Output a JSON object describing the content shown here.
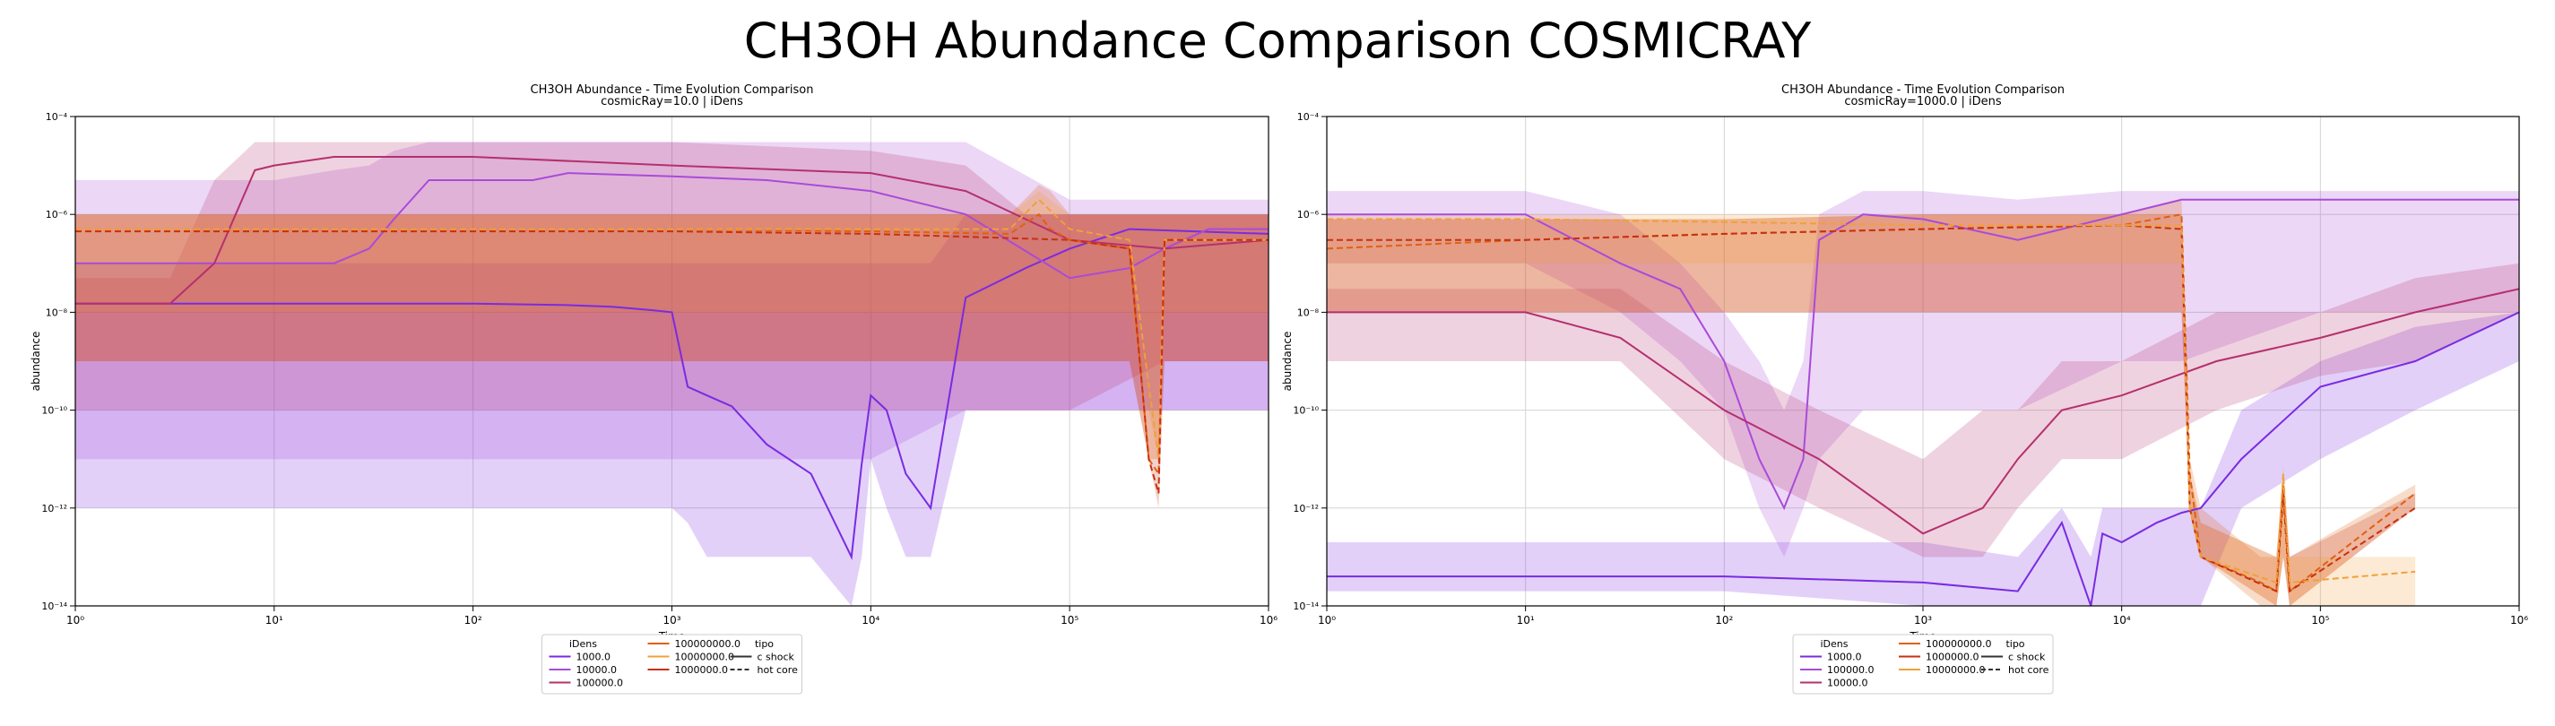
{
  "figure_title": "CH3OH Abundance Comparison COSMICRAY",
  "colors": {
    "violet": "#7A2BE2",
    "purple": "#A94BD8",
    "magenta": "#B5306E",
    "orange": "#E0600F",
    "light_orange": "#F0A03A",
    "red_dashed": "#C83010"
  },
  "chart_data": [
    {
      "type": "line",
      "title": "CH3OH Abundance - Time Evolution Comparison",
      "subtitle": "cosmicRay=10.0 | iDens",
      "xlabel": "Time",
      "ylabel": "abundance",
      "xscale": "log",
      "yscale": "log",
      "xlim": [
        1,
        1000000
      ],
      "ylim": [
        1e-14,
        0.0001
      ],
      "grid": true,
      "x_ticks": [
        "10⁰",
        "10¹",
        "10²",
        "10³",
        "10⁴",
        "10⁵",
        "10⁶"
      ],
      "y_ticks": [
        "10⁻¹⁴",
        "10⁻¹²",
        "10⁻¹⁰",
        "10⁻⁸",
        "10⁻⁶",
        "10⁻⁴"
      ],
      "legend": {
        "placement": "below",
        "iDens_title": "iDens",
        "iDens_entries": [
          "1000.0",
          "10000.0",
          "100000.0",
          "100000000.0",
          "10000000.0",
          "1000000.0"
        ],
        "tipo_title": "tipo",
        "tipo_entries": [
          "c shock",
          "hot core"
        ]
      },
      "series": [
        {
          "name": "1000.0",
          "color": "#7A2BE2",
          "style": "solid",
          "x": [
            1,
            3,
            10,
            30,
            100,
            300,
            500,
            800,
            1000,
            1200,
            1500,
            2000,
            3000,
            5000,
            8000,
            9000,
            10000,
            12000,
            15000,
            20000,
            30000,
            60000,
            100000,
            200000,
            1000000
          ],
          "y": [
            1.5e-08,
            1.5e-08,
            1.5e-08,
            1.5e-08,
            1.5e-08,
            1.4e-08,
            1.3e-08,
            1.1e-08,
            1e-08,
            3e-10,
            2e-10,
            1.2e-10,
            2e-11,
            5e-12,
            1e-13,
            8e-12,
            2e-10,
            1e-10,
            5e-12,
            1e-12,
            2e-08,
            8e-08,
            2e-07,
            5e-07,
            4e-07
          ],
          "band_low": [
            1e-12,
            1e-12,
            1e-12,
            1e-12,
            1e-12,
            1e-12,
            1e-12,
            1e-12,
            1e-12,
            5e-13,
            1e-13,
            1e-13,
            1e-13,
            1e-13,
            1e-14,
            1e-13,
            1e-11,
            1e-12,
            1e-13,
            1e-13,
            1e-10,
            1e-10,
            1e-10,
            1e-10,
            1e-10
          ],
          "band_high": [
            1e-07,
            1e-07,
            1e-07,
            1e-07,
            1e-07,
            1e-07,
            1e-07,
            1e-07,
            1e-07,
            1e-07,
            1e-07,
            1e-07,
            1e-07,
            1e-07,
            1e-07,
            1e-07,
            1e-07,
            1e-07,
            1e-07,
            1e-07,
            1e-06,
            1e-06,
            1e-06,
            1e-06,
            1e-06
          ]
        },
        {
          "name": "10000.0",
          "color": "#A94BD8",
          "style": "solid",
          "x": [
            1,
            10,
            20,
            30,
            40,
            60,
            100,
            200,
            300,
            1000,
            3000,
            10000,
            30000,
            100000,
            200000,
            300000,
            500000,
            1000000
          ],
          "y": [
            1e-07,
            1e-07,
            1e-07,
            2e-07,
            8e-07,
            5e-06,
            5e-06,
            5e-06,
            7e-06,
            6e-06,
            5e-06,
            3e-06,
            1e-06,
            5e-08,
            8e-08,
            2e-07,
            5e-07,
            5e-07
          ],
          "band_low": [
            1e-11,
            1e-11,
            1e-11,
            1e-11,
            1e-11,
            1e-11,
            1e-11,
            1e-11,
            1e-11,
            1e-11,
            1e-11,
            1e-11,
            1e-10,
            1e-10,
            1e-10,
            1e-10,
            1e-10,
            1e-10
          ],
          "band_high": [
            5e-06,
            5e-06,
            8e-06,
            1e-05,
            2e-05,
            3e-05,
            3e-05,
            3e-05,
            3e-05,
            3e-05,
            3e-05,
            3e-05,
            3e-05,
            2e-06,
            2e-06,
            2e-06,
            2e-06,
            2e-06
          ]
        },
        {
          "name": "100000.0",
          "color": "#B5306E",
          "style": "solid",
          "x": [
            1,
            3,
            5,
            8,
            10,
            20,
            100,
            1000,
            10000,
            30000,
            60000,
            100000,
            300000,
            1000000
          ],
          "y": [
            1.5e-08,
            1.5e-08,
            1e-07,
            8e-06,
            1e-05,
            1.5e-05,
            1.5e-05,
            1e-05,
            7e-06,
            3e-06,
            8e-07,
            3e-07,
            2e-07,
            3e-07
          ],
          "band_low": [
            1e-10,
            1e-10,
            1e-10,
            1e-10,
            1e-10,
            1e-10,
            1e-10,
            1e-10,
            1e-10,
            1e-10,
            1e-10,
            1e-10,
            1e-09,
            1e-09
          ],
          "band_high": [
            5e-08,
            5e-08,
            5e-06,
            3e-05,
            3e-05,
            3e-05,
            3e-05,
            3e-05,
            2e-05,
            1e-05,
            1e-06,
            1e-06,
            1e-06,
            1e-06
          ]
        },
        {
          "name": "100000000.0",
          "color": "#E0600F",
          "style": "dashed",
          "x": [
            1,
            10,
            100,
            1000,
            10000,
            50000,
            70000,
            80000,
            100000,
            200000,
            250000,
            280000,
            300000,
            1000000
          ],
          "y": [
            5e-07,
            5e-07,
            5e-07,
            5e-07,
            4.5e-07,
            4e-07,
            1e-06,
            5e-07,
            3e-07,
            2e-07,
            1e-11,
            5e-12,
            3e-07,
            3e-07
          ],
          "band_low": [
            1e-09,
            1e-09,
            1e-09,
            1e-09,
            1e-09,
            1e-09,
            1e-09,
            1e-09,
            1e-09,
            1e-09,
            1e-11,
            1e-11,
            1e-09,
            1e-09
          ],
          "band_high": [
            1e-06,
            1e-06,
            1e-06,
            1e-06,
            1e-06,
            1e-06,
            4e-06,
            3e-06,
            1e-06,
            1e-06,
            1e-06,
            1e-06,
            1e-06,
            1e-06
          ]
        },
        {
          "name": "10000000.0",
          "color": "#F0A03A",
          "style": "dashed",
          "x": [
            1,
            10,
            100,
            1000,
            10000,
            50000,
            70000,
            100000,
            200000,
            280000,
            300000,
            1000000
          ],
          "y": [
            5e-07,
            5e-07,
            5e-07,
            5e-07,
            5e-07,
            5e-07,
            2e-06,
            5e-07,
            3e-07,
            1e-11,
            3e-07,
            3e-07
          ],
          "band_low": [
            1e-08,
            1e-08,
            1e-08,
            1e-08,
            1e-08,
            1e-08,
            1e-08,
            1e-08,
            1e-08,
            1e-11,
            1e-08,
            1e-08
          ],
          "band_high": [
            1e-06,
            1e-06,
            1e-06,
            1e-06,
            1e-06,
            1e-06,
            3e-06,
            1e-06,
            1e-06,
            1e-06,
            1e-06,
            1e-06
          ]
        },
        {
          "name": "1000000.0",
          "color": "#C83010",
          "style": "dashed",
          "x": [
            1,
            10,
            100,
            1000,
            10000,
            100000,
            200000,
            250000,
            280000,
            300000,
            1000000
          ],
          "y": [
            4.5e-07,
            4.5e-07,
            4.5e-07,
            4.5e-07,
            4e-07,
            3e-07,
            2e-07,
            1e-11,
            2e-12,
            3e-07,
            3e-07
          ],
          "band_low": [
            1e-09,
            1e-09,
            1e-09,
            1e-09,
            1e-09,
            1e-09,
            1e-09,
            1e-11,
            1e-12,
            1e-09,
            1e-09
          ],
          "band_high": [
            1e-06,
            1e-06,
            1e-06,
            1e-06,
            1e-06,
            1e-06,
            1e-06,
            1e-06,
            1e-06,
            1e-06,
            1e-06
          ]
        }
      ]
    },
    {
      "type": "line",
      "title": "CH3OH Abundance - Time Evolution Comparison",
      "subtitle": "cosmicRay=1000.0 | iDens",
      "xlabel": "Time",
      "ylabel": "abundance",
      "xscale": "log",
      "yscale": "log",
      "xlim": [
        1,
        1000000
      ],
      "ylim": [
        1e-14,
        0.0001
      ],
      "grid": true,
      "x_ticks": [
        "10⁰",
        "10¹",
        "10²",
        "10³",
        "10⁴",
        "10⁵",
        "10⁶"
      ],
      "y_ticks": [
        "10⁻¹⁴",
        "10⁻¹²",
        "10⁻¹⁰",
        "10⁻⁸",
        "10⁻⁶",
        "10⁻⁴"
      ],
      "legend": {
        "placement": "below",
        "iDens_title": "iDens",
        "iDens_entries": [
          "1000.0",
          "100000.0",
          "10000.0",
          "100000000.0",
          "1000000.0",
          "10000000.0"
        ],
        "tipo_title": "tipo",
        "tipo_entries": [
          "c shock",
          "hot core"
        ]
      },
      "series": [
        {
          "name": "1000.0",
          "color": "#7A2BE2",
          "style": "solid",
          "x": [
            1,
            100,
            1000,
            3000,
            5000,
            7000,
            8000,
            10000,
            15000,
            20000,
            25000,
            40000,
            100000,
            300000,
            1000000
          ],
          "y": [
            4e-14,
            4e-14,
            3e-14,
            2e-14,
            5e-13,
            1e-14,
            3e-13,
            2e-13,
            5e-13,
            8e-13,
            1e-12,
            1e-11,
            3e-10,
            1e-09,
            1e-08
          ],
          "band_low": [
            2e-14,
            2e-14,
            1e-14,
            1e-14,
            1e-14,
            1e-14,
            1e-14,
            1e-14,
            1e-14,
            1e-14,
            1e-14,
            1e-12,
            1e-11,
            1e-10,
            1e-09
          ],
          "band_high": [
            2e-13,
            2e-13,
            2e-13,
            1e-13,
            1e-12,
            1e-13,
            1e-12,
            1e-12,
            1e-12,
            1e-12,
            1e-12,
            1e-10,
            1e-09,
            5e-09,
            1e-08
          ]
        },
        {
          "name": "100000.0",
          "color": "#A94BD8",
          "style": "solid",
          "x": [
            1,
            10,
            30,
            60,
            100,
            150,
            200,
            250,
            300,
            500,
            1000,
            3000,
            10000,
            20000,
            100000,
            1000000
          ],
          "y": [
            1e-06,
            1e-06,
            1e-07,
            3e-08,
            1e-09,
            1e-11,
            1e-12,
            1e-11,
            3e-07,
            1e-06,
            8e-07,
            3e-07,
            1e-06,
            2e-06,
            2e-06,
            2e-06
          ],
          "band_low": [
            1e-07,
            1e-07,
            1e-08,
            1e-09,
            1e-10,
            1e-12,
            1e-13,
            1e-12,
            1e-11,
            1e-10,
            1e-10,
            1e-10,
            1e-09,
            1e-09,
            1e-08,
            1e-08
          ],
          "band_high": [
            3e-06,
            3e-06,
            1e-06,
            1e-07,
            1e-08,
            1e-09,
            1e-10,
            1e-09,
            1e-06,
            3e-06,
            3e-06,
            2e-06,
            3e-06,
            3e-06,
            3e-06,
            3e-06
          ]
        },
        {
          "name": "10000.0",
          "color": "#B5306E",
          "style": "solid",
          "x": [
            1,
            10,
            30,
            100,
            300,
            1000,
            2000,
            3000,
            5000,
            10000,
            30000,
            100000,
            300000,
            1000000
          ],
          "y": [
            1e-08,
            1e-08,
            3e-09,
            1e-10,
            1e-11,
            3e-13,
            1e-12,
            1e-11,
            1e-10,
            2e-10,
            1e-09,
            3e-09,
            1e-08,
            3e-08
          ],
          "band_low": [
            1e-09,
            1e-09,
            1e-09,
            1e-11,
            1e-12,
            1e-13,
            1e-13,
            1e-12,
            1e-11,
            1e-11,
            1e-10,
            5e-10,
            1e-09,
            1e-08
          ],
          "band_high": [
            3e-08,
            3e-08,
            3e-08,
            1e-09,
            1e-10,
            1e-11,
            1e-10,
            1e-10,
            1e-09,
            1e-09,
            1e-08,
            1e-08,
            5e-08,
            1e-07
          ]
        },
        {
          "name": "100000000.0",
          "color": "#E0600F",
          "style": "dashed",
          "x": [
            1,
            10,
            100,
            1000,
            10000,
            20000,
            22000,
            25000,
            50000,
            60000,
            65000,
            70000,
            300000
          ],
          "y": [
            2e-07,
            3e-07,
            4e-07,
            5e-07,
            6e-07,
            1e-06,
            5e-12,
            1e-13,
            3e-14,
            2e-14,
            3e-12,
            2e-14,
            2e-12
          ],
          "band_low": [
            1e-08,
            1e-08,
            1e-08,
            1e-08,
            1e-08,
            1e-08,
            1e-12,
            1e-13,
            1e-14,
            1e-14,
            1e-13,
            1e-14,
            1e-12
          ],
          "band_high": [
            8e-07,
            8e-07,
            8e-07,
            1e-06,
            1e-06,
            2e-06,
            1e-11,
            1e-12,
            1e-13,
            1e-13,
            5e-12,
            1e-13,
            3e-12
          ]
        },
        {
          "name": "1000000.0",
          "color": "#C83010",
          "style": "dashed",
          "x": [
            1,
            10,
            100,
            1000,
            10000,
            20000,
            22000,
            25000,
            60000,
            65000,
            70000,
            300000
          ],
          "y": [
            3e-07,
            3e-07,
            4e-07,
            5e-07,
            6e-07,
            5e-07,
            1e-12,
            1e-13,
            2e-14,
            2e-12,
            2e-14,
            1e-12
          ],
          "band_low": [
            1e-08,
            1e-08,
            1e-08,
            1e-08,
            1e-08,
            1e-08,
            1e-12,
            1e-13,
            1e-14,
            1e-13,
            1e-14,
            1e-12
          ],
          "band_high": [
            8e-07,
            8e-07,
            8e-07,
            1e-06,
            1e-06,
            1e-06,
            5e-12,
            5e-13,
            1e-13,
            5e-12,
            1e-13,
            2e-12
          ]
        },
        {
          "name": "10000000.0",
          "color": "#F0A03A",
          "style": "dashed",
          "x": [
            1,
            10,
            100,
            1000,
            10000,
            20000,
            22000,
            25000,
            60000,
            65000,
            70000,
            300000
          ],
          "y": [
            8e-07,
            8e-07,
            7e-07,
            6e-07,
            6e-07,
            6e-07,
            1e-12,
            1e-13,
            3e-14,
            5e-12,
            3e-14,
            5e-14
          ],
          "band_low": [
            1e-07,
            1e-07,
            1e-07,
            1e-07,
            1e-07,
            1e-07,
            1e-12,
            1e-13,
            1e-14,
            1e-13,
            1e-14,
            1e-14
          ],
          "band_high": [
            1e-06,
            1e-06,
            1e-06,
            1e-06,
            1e-06,
            1e-06,
            5e-12,
            5e-13,
            1e-13,
            8e-12,
            1e-13,
            1e-13
          ]
        }
      ]
    }
  ]
}
